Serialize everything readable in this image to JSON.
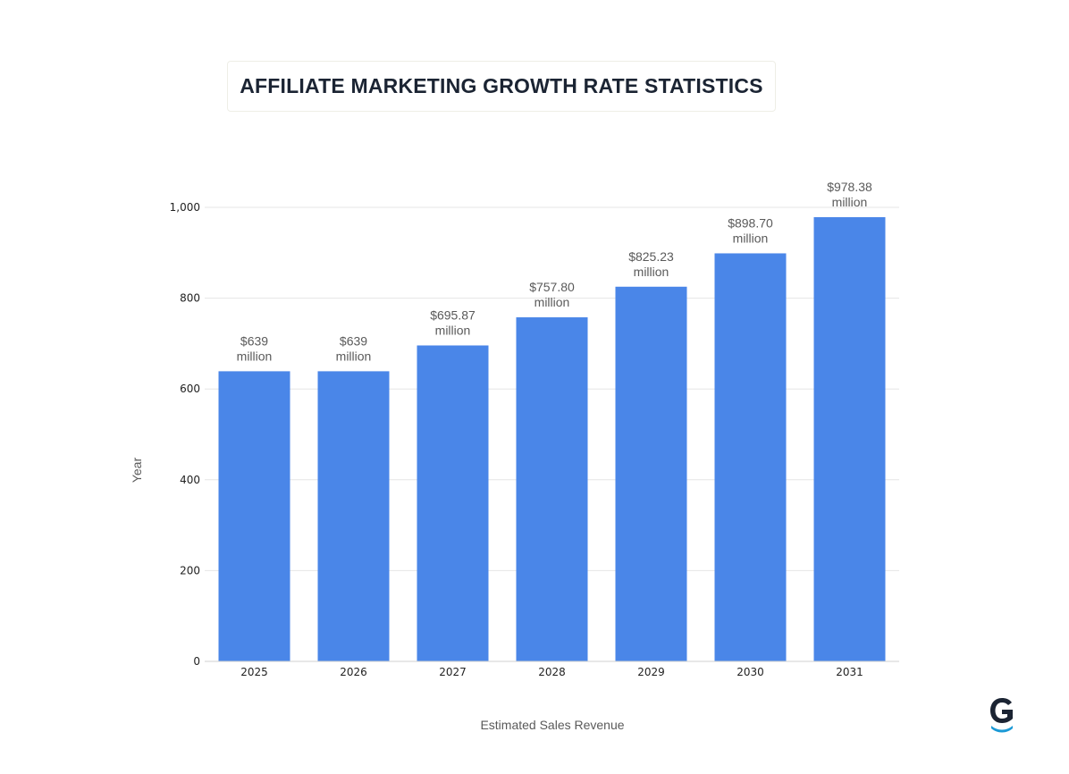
{
  "chart_data": {
    "type": "bar",
    "title": "AFFILIATE MARKETING GROWTH RATE STATISTICS",
    "xlabel": "Estimated Sales Revenue",
    "ylabel": "Year",
    "categories": [
      "2025",
      "2026",
      "2027",
      "2028",
      "2029",
      "2030",
      "2031"
    ],
    "values": [
      639,
      639,
      695.87,
      757.8,
      825.23,
      898.7,
      978.38
    ],
    "data_labels": [
      [
        "$639",
        "million"
      ],
      [
        "$639",
        "million"
      ],
      [
        "$695.87",
        "million"
      ],
      [
        "$757.80",
        "million"
      ],
      [
        "$825.23",
        "million"
      ],
      [
        "$898.70",
        "million"
      ],
      [
        "$978.38",
        "million"
      ]
    ],
    "yticks": [
      0,
      200,
      400,
      600,
      800,
      1000
    ],
    "ytick_labels": [
      "0",
      "200",
      "400",
      "600",
      "800",
      "1,000"
    ],
    "ylim": [
      0,
      1000
    ],
    "grid": true,
    "bar_color": "#4a86e8",
    "grid_color": "#e6e6e6"
  },
  "brand": {
    "logo_icon": "g-logo-icon",
    "logo_color": "#1b2433",
    "logo_accent": "#1c9ad6"
  }
}
